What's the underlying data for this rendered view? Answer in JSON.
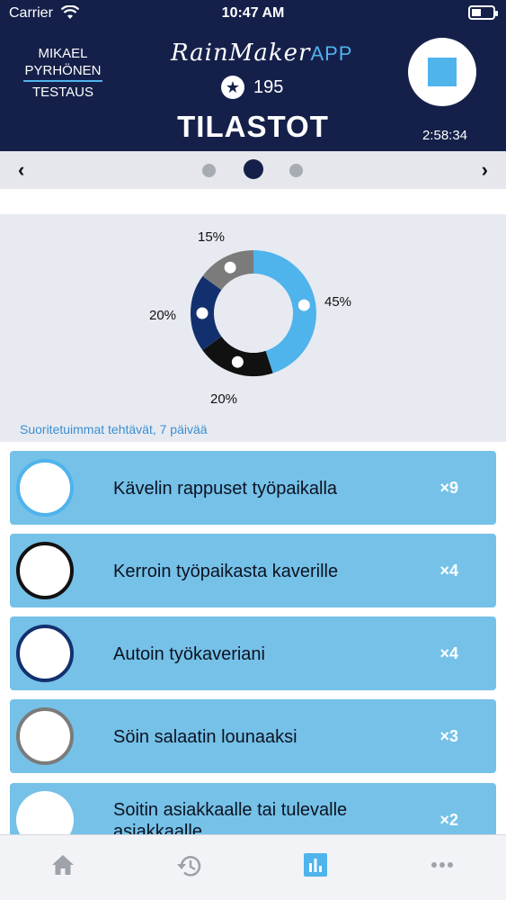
{
  "status_bar": {
    "carrier": "Carrier",
    "time": "10:47 AM"
  },
  "header": {
    "user_first": "MIKAEL",
    "user_last": "PYRHÖNEN",
    "mode": "TESTAUS",
    "logo_script": "RainMaker",
    "logo_app": "APP",
    "score": "195",
    "title": "TILASTOT",
    "timer": "2:58:34"
  },
  "pager": {
    "prev_icon": "‹",
    "next_icon": "›",
    "active_index": 1,
    "count": 3
  },
  "chart_data": {
    "type": "pie",
    "title": "",
    "categories": [
      "Kävelin rappuset työpaikalla",
      "Kerroin työpaikasta kaverille",
      "Autoin työkaveriani",
      "Söin salaatin lounaaksi"
    ],
    "values": [
      45,
      20,
      20,
      15
    ],
    "labels": [
      "45%",
      "20%",
      "20%",
      "15%"
    ],
    "colors": [
      "#4fb3ec",
      "#111111",
      "#13306e",
      "#7b7b7b"
    ]
  },
  "chart_caption": "Suoritetuimmat tehtävät, 7 päivää",
  "tasks": [
    {
      "label": "Kävelin rappuset työpaikalla",
      "count": "×9",
      "ring": "#4fb3ec"
    },
    {
      "label": "Kerroin työpaikasta kaverille",
      "count": "×4",
      "ring": "#111111"
    },
    {
      "label": "Autoin työkaveriani",
      "count": "×4",
      "ring": "#13306e"
    },
    {
      "label": "Söin salaatin lounaaksi",
      "count": "×3",
      "ring": "#7b7b7b"
    },
    {
      "label": "Soitin asiakkaalle tai tulevalle asiakkaalle",
      "count": "×2",
      "ring": "#ffffff"
    }
  ],
  "tab_bar": {
    "tabs": [
      {
        "icon": "home-icon",
        "active": false
      },
      {
        "icon": "history-icon",
        "active": false
      },
      {
        "icon": "stats-icon",
        "active": true
      },
      {
        "icon": "more-icon",
        "active": false
      }
    ]
  },
  "colors": {
    "navy": "#15204a",
    "accent": "#4fb3ec",
    "card": "#75c1e8",
    "tab_inactive": "#9ea2a9"
  }
}
